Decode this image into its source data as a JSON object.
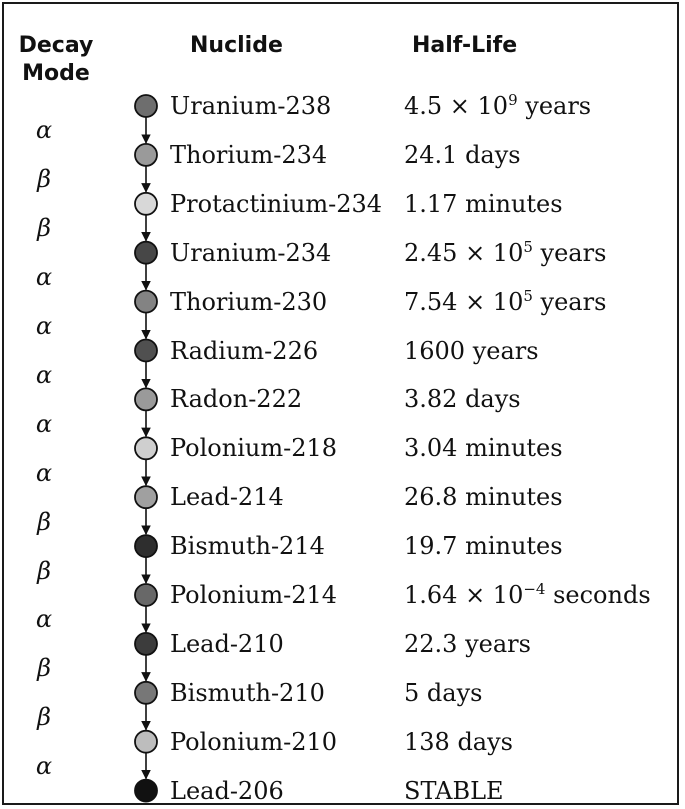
{
  "headers": {
    "decay_mode": [
      "Decay",
      "Mode"
    ],
    "nuclide": "Nuclide",
    "half_life": "Half-Life"
  },
  "nuclides": [
    {
      "name": "Uranium-238",
      "half_life": "4.5 × 10",
      "exp": "9",
      "unit": " years",
      "shade": "#6e6e6e"
    },
    {
      "name": "Thorium-234",
      "half_life": "24.1 days",
      "exp": "",
      "unit": "",
      "shade": "#9a9a9a"
    },
    {
      "name": "Protactinium-234",
      "half_life": "1.17 minutes",
      "exp": "",
      "unit": "",
      "shade": "#d8d8d8"
    },
    {
      "name": "Uranium-234",
      "half_life": "2.45 × 10",
      "exp": "5",
      "unit": " years",
      "shade": "#474747"
    },
    {
      "name": "Thorium-230",
      "half_life": "7.54 × 10",
      "exp": "5",
      "unit": " years",
      "shade": "#838383"
    },
    {
      "name": "Radium-226",
      "half_life": "1600 years",
      "exp": "",
      "unit": "",
      "shade": "#505050"
    },
    {
      "name": "Radon-222",
      "half_life": "3.82 days",
      "exp": "",
      "unit": "",
      "shade": "#9a9a9a"
    },
    {
      "name": "Polonium-218",
      "half_life": "3.04 minutes",
      "exp": "",
      "unit": "",
      "shade": "#cfcfcf"
    },
    {
      "name": "Lead-214",
      "half_life": "26.8 minutes",
      "exp": "",
      "unit": "",
      "shade": "#a0a0a0"
    },
    {
      "name": "Bismuth-214",
      "half_life": "19.7 minutes",
      "exp": "",
      "unit": "",
      "shade": "#2e2e2e"
    },
    {
      "name": "Polonium-214",
      "half_life": "1.64 × 10",
      "exp": "−4",
      "unit": " seconds",
      "shade": "#686868"
    },
    {
      "name": "Lead-210",
      "half_life": "22.3 years",
      "exp": "",
      "unit": "",
      "shade": "#3c3c3c"
    },
    {
      "name": "Bismuth-210",
      "half_life": "5 days",
      "exp": "",
      "unit": "",
      "shade": "#777777"
    },
    {
      "name": "Polonium-210",
      "half_life": "138 days",
      "exp": "",
      "unit": "",
      "shade": "#bdbdbd"
    },
    {
      "name": "Lead-206",
      "half_life": "STABLE",
      "exp": "",
      "unit": "",
      "shade": "#111111"
    }
  ],
  "decay_modes": [
    "α",
    "β",
    "β",
    "α",
    "α",
    "α",
    "α",
    "α",
    "β",
    "β",
    "α",
    "β",
    "β",
    "α"
  ]
}
